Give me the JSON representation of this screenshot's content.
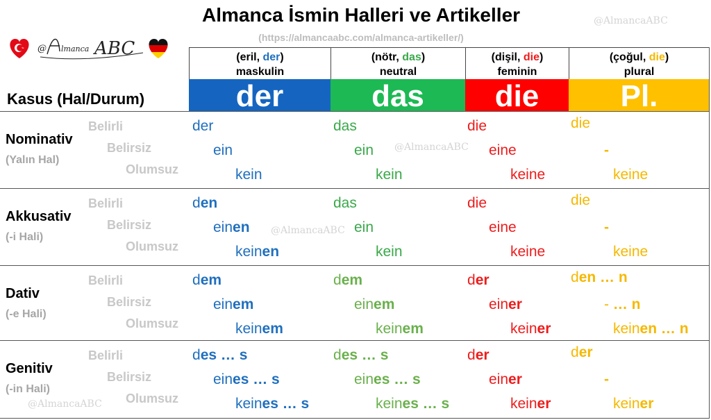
{
  "header": {
    "title": "Almanca İsmin Halleri ve Artikeller",
    "url": "(https://almancaabc.com/almanca-artikeller/)",
    "watermark": "@AlmancaABC",
    "logo_text": "@Almanca ABC"
  },
  "columns": [
    {
      "gender_open": "(eril, ",
      "gender_word": "der",
      "gender_close": ")",
      "sub": "maskulin",
      "band": "der",
      "color": "#1565c0"
    },
    {
      "gender_open": "(nötr, ",
      "gender_word": "das",
      "gender_close": ")",
      "sub": "neutral",
      "band": "das",
      "color": "#1db954"
    },
    {
      "gender_open": "(dişil, ",
      "gender_word": "die",
      "gender_close": ")",
      "sub": "feminin",
      "band": "die",
      "color": "#ff0000"
    },
    {
      "gender_open": "(çoğul, ",
      "gender_word": "die",
      "gender_close": ")",
      "sub": "plural",
      "band": "Pl.",
      "color": "#ffc000"
    }
  ],
  "kasus_label": "Kasus (Hal/Durum)",
  "row_labels": [
    "Belirli",
    "Belirsiz",
    "Olumsuz"
  ],
  "cases": [
    {
      "name": "Nominativ",
      "sub": "(Yalın Hal)",
      "cells": [
        [
          [
            "der",
            ""
          ],
          [
            "ein",
            ""
          ],
          [
            "kein",
            ""
          ]
        ],
        [
          [
            "das",
            ""
          ],
          [
            "ein",
            ""
          ],
          [
            "kein",
            ""
          ]
        ],
        [
          [
            "die",
            ""
          ],
          [
            "eine",
            ""
          ],
          [
            "keine",
            ""
          ]
        ],
        [
          [
            "die",
            ""
          ],
          [
            "-",
            ""
          ],
          [
            "keine",
            ""
          ]
        ]
      ]
    },
    {
      "name": "Akkusativ",
      "sub": "(-i Hali)",
      "cells": [
        [
          [
            "d",
            "en"
          ],
          [
            "ein",
            "en"
          ],
          [
            "kein",
            "en"
          ]
        ],
        [
          [
            "das",
            ""
          ],
          [
            "ein",
            ""
          ],
          [
            "kein",
            ""
          ]
        ],
        [
          [
            "die",
            ""
          ],
          [
            "eine",
            ""
          ],
          [
            "keine",
            ""
          ]
        ],
        [
          [
            "die",
            ""
          ],
          [
            "-",
            ""
          ],
          [
            "keine",
            ""
          ]
        ]
      ]
    },
    {
      "name": "Dativ",
      "sub": "(-e Hali)",
      "cells": [
        [
          [
            "d",
            "em"
          ],
          [
            "ein",
            "em"
          ],
          [
            "kein",
            "em"
          ]
        ],
        [
          [
            "d",
            "em"
          ],
          [
            "ein",
            "em"
          ],
          [
            "kein",
            "em"
          ]
        ],
        [
          [
            "d",
            "er"
          ],
          [
            "ein",
            "er"
          ],
          [
            "kein",
            "er"
          ]
        ],
        [
          [
            "d",
            "en … n"
          ],
          [
            "- ",
            "… n"
          ],
          [
            "kein",
            "en … n"
          ]
        ]
      ]
    },
    {
      "name": "Genitiv",
      "sub": "(-in Hali)",
      "cells": [
        [
          [
            "d",
            "es … s"
          ],
          [
            "ein",
            "es  … s"
          ],
          [
            "kein",
            "es  … s"
          ]
        ],
        [
          [
            "d",
            "es  … s"
          ],
          [
            "ein",
            "es  … s"
          ],
          [
            "kein",
            "es  … s"
          ]
        ],
        [
          [
            "d",
            "er"
          ],
          [
            "ein",
            "er"
          ],
          [
            "kein",
            "er"
          ]
        ],
        [
          [
            "d",
            "er"
          ],
          [
            "-",
            ""
          ],
          [
            "kein",
            "er"
          ]
        ]
      ]
    }
  ]
}
